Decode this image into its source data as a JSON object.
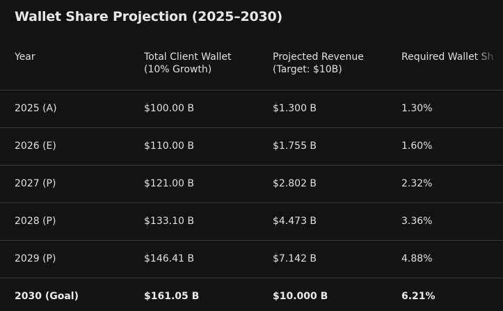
{
  "title": "Wallet Share Projection (2025–2030)",
  "table": {
    "headers": [
      {
        "line1": "Year",
        "line2": ""
      },
      {
        "line1": "Total Client Wallet",
        "line2": "(10% Growth)"
      },
      {
        "line1": "Projected Revenue",
        "line2": "(Target: $10B)"
      },
      {
        "line1": "Required Wallet Sh",
        "line2": ""
      }
    ],
    "rows": [
      [
        "2025 (A)",
        "$100.00 B",
        "$1.300 B",
        "1.30%"
      ],
      [
        "2026 (E)",
        "$110.00 B",
        "$1.755 B",
        "1.60%"
      ],
      [
        "2027 (P)",
        "$121.00 B",
        "$2.802 B",
        "2.32%"
      ],
      [
        "2028 (P)",
        "$133.10 B",
        "$4.473 B",
        "3.36%"
      ],
      [
        "2029 (P)",
        "$146.41 B",
        "$7.142 B",
        "4.88%"
      ],
      [
        "2030 (Goal)",
        "$161.05 B",
        "$10.000 B",
        "6.21%"
      ]
    ]
  }
}
